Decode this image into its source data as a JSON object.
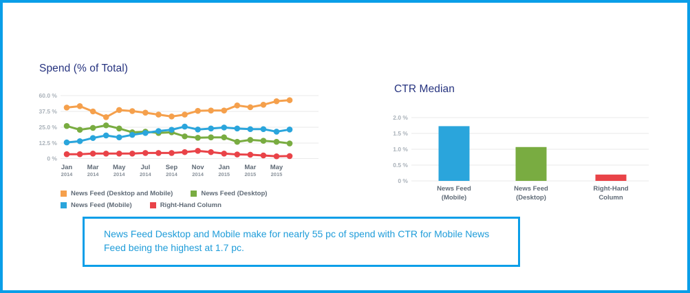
{
  "page": {
    "border_color": "#0A9EE8",
    "background": "#FFFFFF"
  },
  "spend_chart": {
    "title": "Spend (% of Total)"
  },
  "ctr_chart": {
    "title": "CTR Median"
  },
  "callout": {
    "text": "News Feed Desktop and Mobile make for nearly 55 pc of spend with CTR for Mobile News Feed being the highest at 1.7 pc.",
    "border_color": "#0A9EE8",
    "text_color": "#1E9CD9"
  },
  "chart_data": [
    {
      "type": "line",
      "title": "Spend (% of Total)",
      "x": [
        "Jan 2014",
        "Feb 2014",
        "Mar 2014",
        "Apr 2014",
        "May 2014",
        "Jun 2014",
        "Jul 2014",
        "Aug 2014",
        "Sep 2014",
        "Oct 2014",
        "Nov 2014",
        "Dec 2014",
        "Jan 2015",
        "Feb 2015",
        "Mar 2015",
        "Apr 2015",
        "May 2015",
        "Jun 2015"
      ],
      "x_tick_interval": 2,
      "y_ticks": {
        "labels": [
          "60.0 %",
          "37.5 %",
          "25.0 %",
          "12.5 %",
          "0 %"
        ],
        "values": [
          60,
          37.5,
          25,
          12.5,
          0
        ],
        "spacing": "equal-pixel"
      },
      "grid": true,
      "legend_position": "bottom",
      "legend_rows": [
        [
          0,
          1
        ],
        [
          2,
          3
        ]
      ],
      "series": [
        {
          "name": "News Feed (Desktop and Mobile)",
          "color": "#F5A04C",
          "values": [
            43,
            45,
            37.5,
            33,
            39.5,
            38,
            36.5,
            35,
            33.5,
            35,
            38.3,
            38.8,
            38.8,
            46,
            43.5,
            47,
            52,
            53.5
          ]
        },
        {
          "name": "News Feed (Desktop)",
          "color": "#79AC41",
          "values": [
            26,
            23,
            24.5,
            26.5,
            24,
            21,
            21.5,
            20.5,
            21,
            17.8,
            16.7,
            17,
            17,
            13.5,
            15,
            14.3,
            13.5,
            12.2
          ]
        },
        {
          "name": "News Feed (Mobile)",
          "color": "#2AA5DC",
          "values": [
            13,
            14,
            16.5,
            18.5,
            17,
            19,
            20.5,
            22,
            23,
            25.5,
            23.2,
            24,
            24.8,
            24,
            23.5,
            23.5,
            21.5,
            23.2
          ]
        },
        {
          "name": "Right-Hand Column",
          "color": "#E94348",
          "values": [
            3.5,
            3.5,
            4,
            4,
            4,
            4,
            4.5,
            4.5,
            4.5,
            5.2,
            6.2,
            5.2,
            4,
            3.3,
            3.1,
            2.5,
            1.8,
            2
          ]
        }
      ]
    },
    {
      "type": "bar",
      "title": "CTR Median",
      "categories": [
        "News Feed (Mobile)",
        "News Feed (Desktop)",
        "Right-Hand Column"
      ],
      "category_lines": [
        [
          "News Feed",
          "(Mobile)"
        ],
        [
          "News Feed",
          "(Desktop)"
        ],
        [
          "Right-Hand",
          "Column"
        ]
      ],
      "values": [
        1.73,
        1.07,
        0.2
      ],
      "colors": [
        "#2AA5DC",
        "#79AC41",
        "#E94348"
      ],
      "y_ticks": {
        "labels": [
          "2.0 %",
          "1.5 %",
          "1.0 %",
          "0.5 %",
          "0 %"
        ],
        "values": [
          2,
          1.5,
          1,
          0.5,
          0
        ]
      },
      "ylim": [
        0,
        2
      ],
      "grid": true
    }
  ]
}
